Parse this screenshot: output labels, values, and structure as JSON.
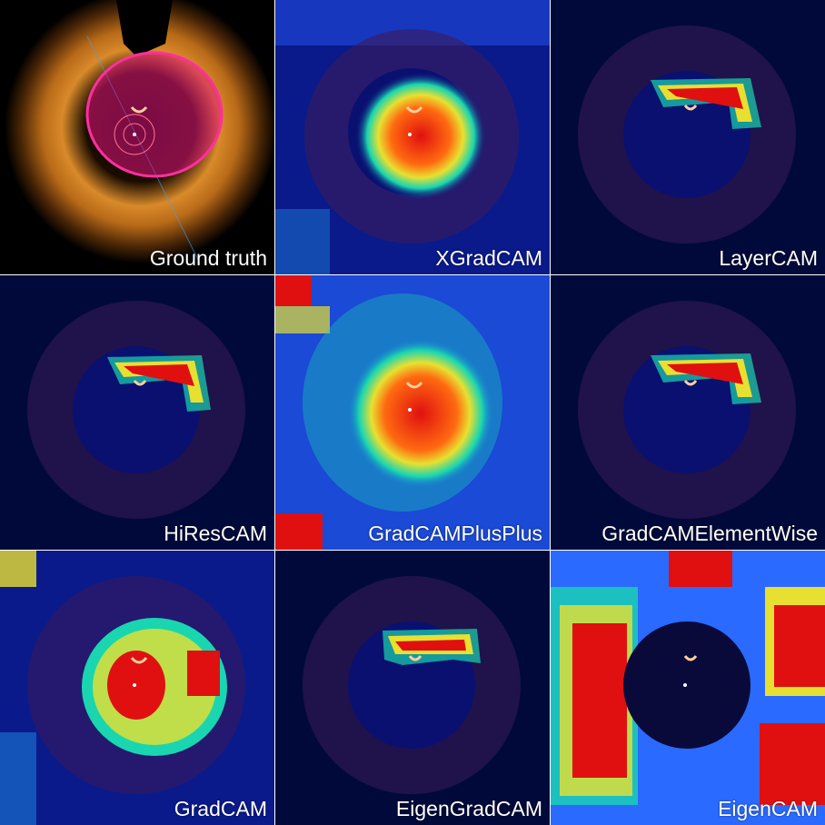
{
  "panels": [
    {
      "label": "Ground truth",
      "kind": "ground-truth"
    },
    {
      "label": "XGradCAM",
      "kind": "heatmap"
    },
    {
      "label": "LayerCAM",
      "kind": "heatmap"
    },
    {
      "label": "HiResCAM",
      "kind": "heatmap"
    },
    {
      "label": "GradCAMPlusPlus",
      "kind": "heatmap"
    },
    {
      "label": "GradCAMElementWise",
      "kind": "heatmap"
    },
    {
      "label": "GradCAM",
      "kind": "heatmap"
    },
    {
      "label": "EigenGradCAM",
      "kind": "heatmap"
    },
    {
      "label": "EigenCAM",
      "kind": "heatmap"
    }
  ],
  "colors": {
    "background": "#00002a",
    "vessel_wall": "#d98a2a",
    "lumen_mask": "#e0147a",
    "heat_low": "#0a1a8a",
    "heat_mid": "#19d6b0",
    "heat_high": "#e01010"
  }
}
